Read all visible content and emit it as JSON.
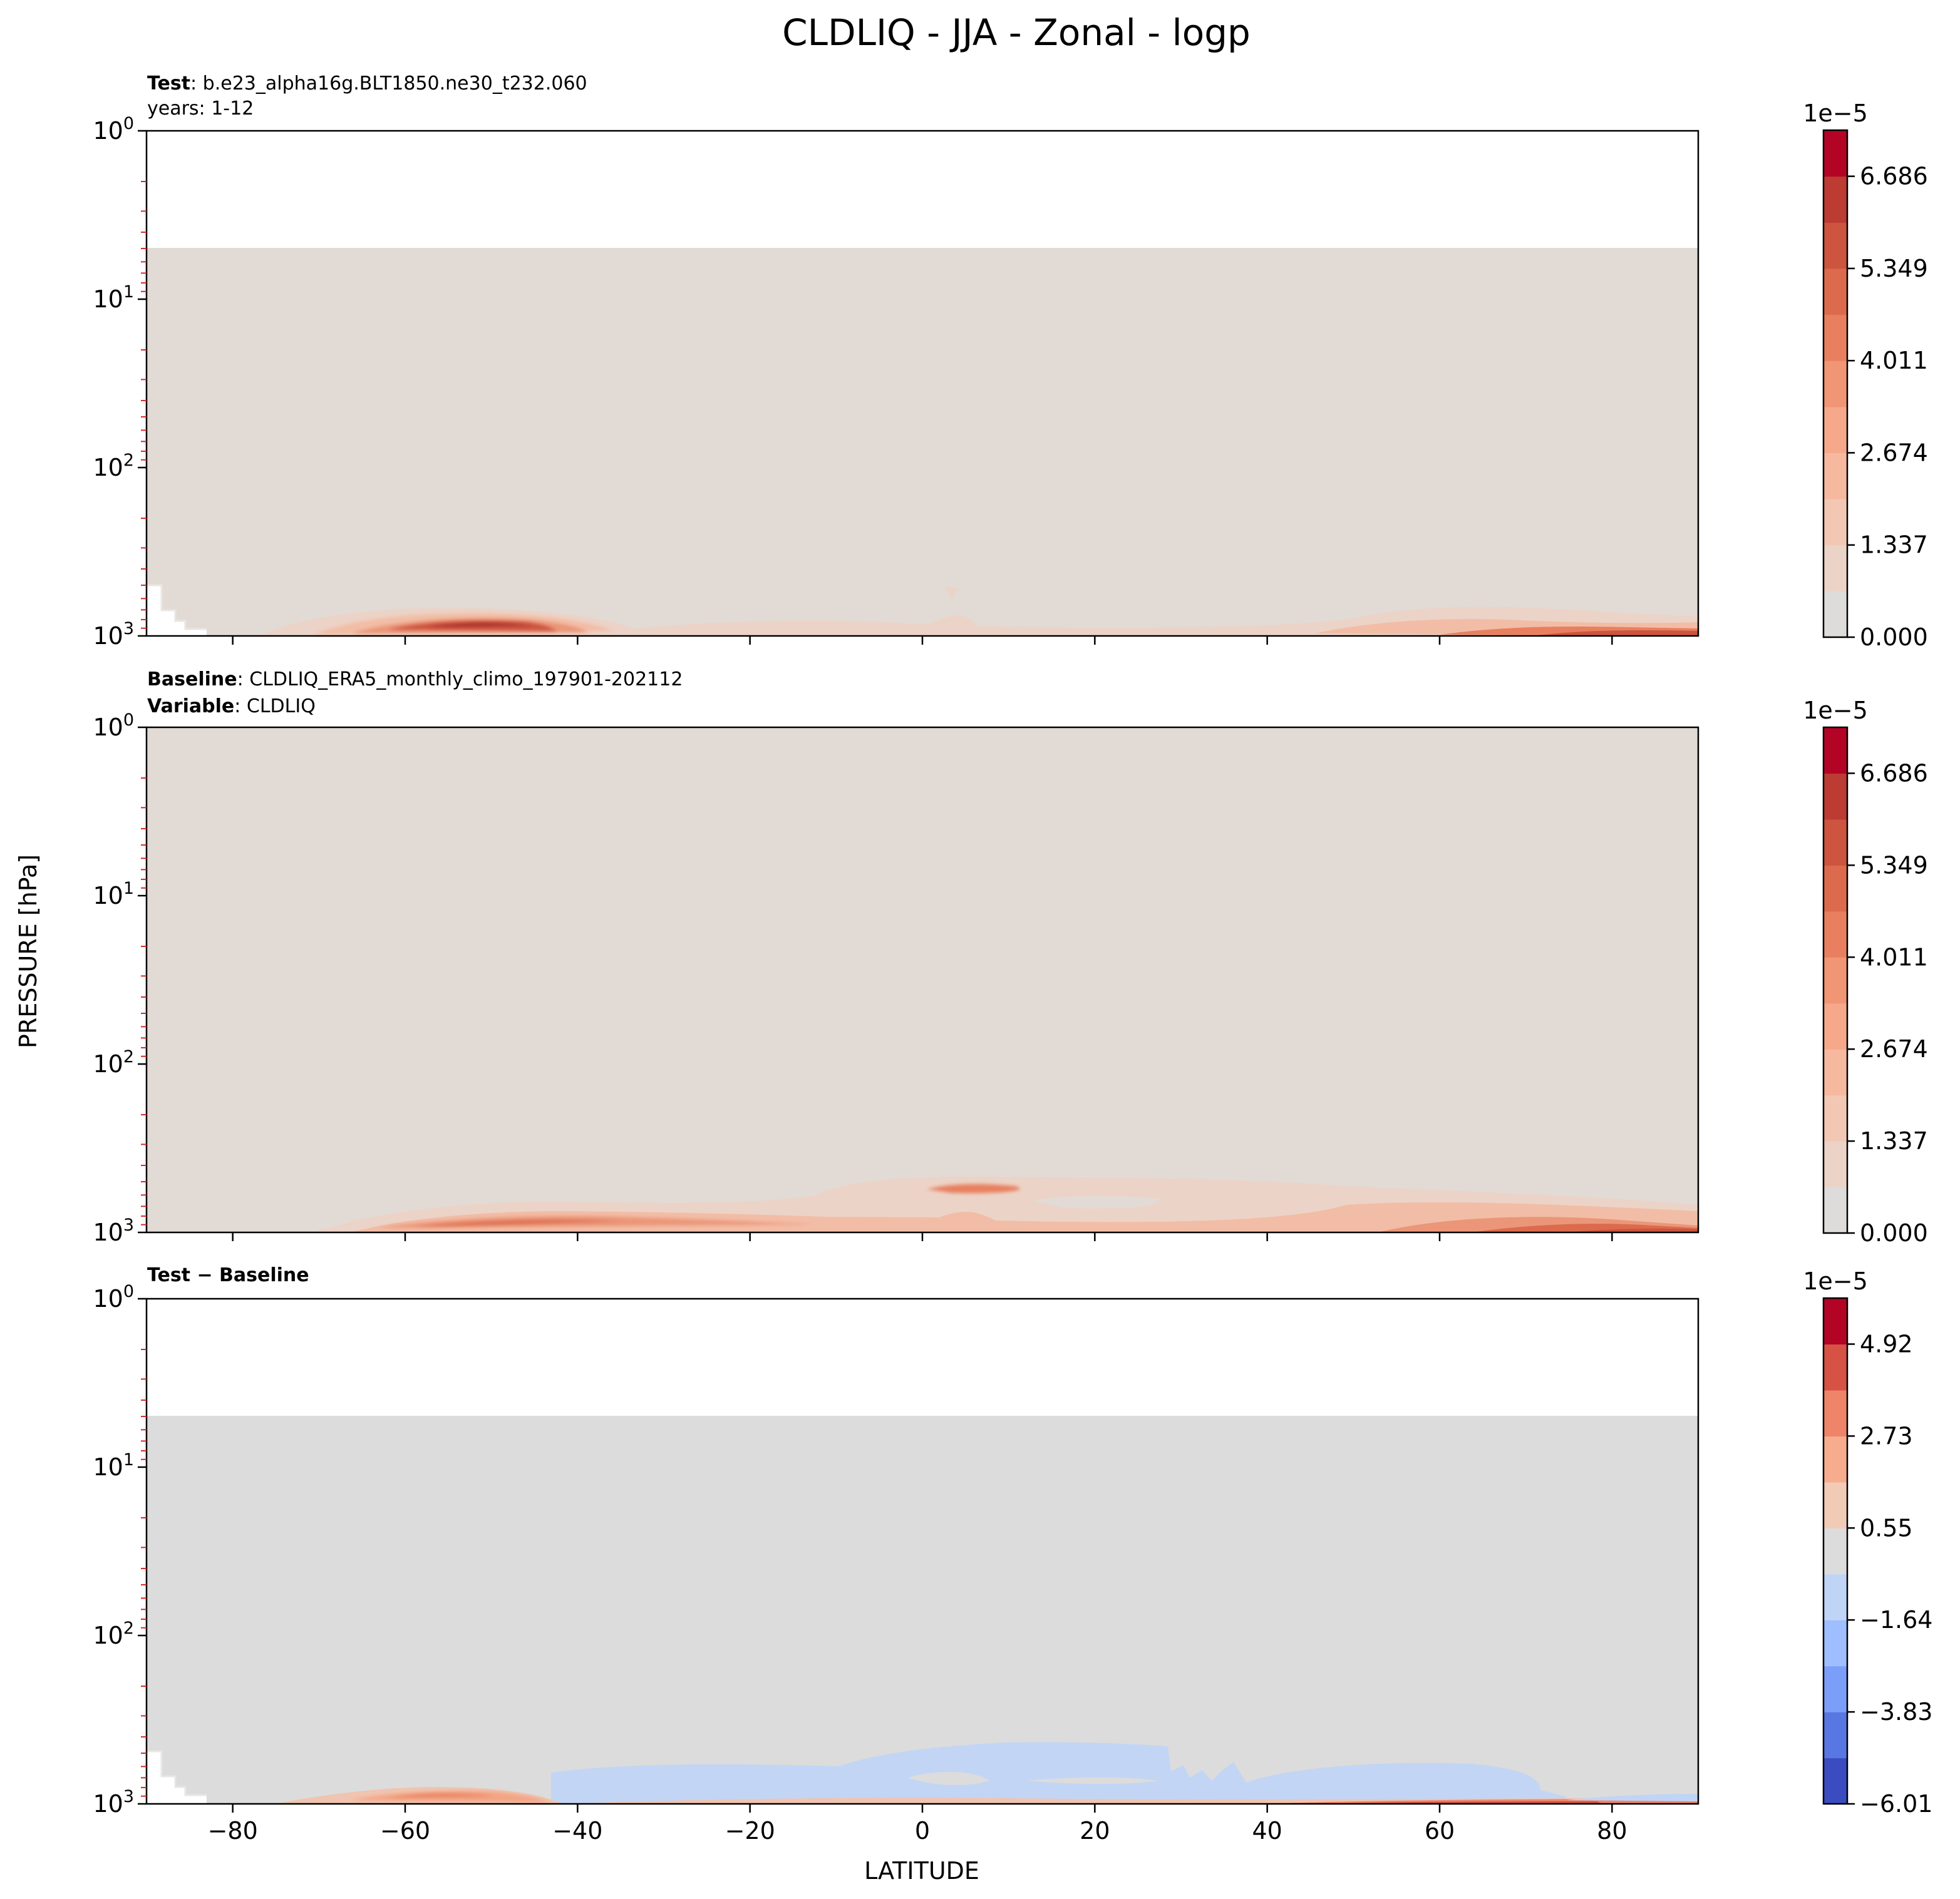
{
  "figure": {
    "title": "CLDLIQ - JJA - Zonal - logp",
    "ylabel": "PRESSURE [hPa]",
    "xlabel": "LATITUDE"
  },
  "panels": [
    {
      "id": "test",
      "line1_bold": "Test",
      "line1_text": ": b.e23_alpha16g.BLT1850.ne30_t232.060",
      "line2_bold": "",
      "line2_text": "years: 1-12",
      "colorbar_exponent": "1e−5",
      "colorbar_ticks": [
        "0.000",
        "1.337",
        "2.674",
        "4.011",
        "5.349",
        "6.686"
      ],
      "colorbar_colors": [
        "#dddcdb",
        "#ecd3c7",
        "#f2c8b5",
        "#f6b9a0",
        "#f5a98a",
        "#f19675",
        "#e8805f",
        "#dc6b4d",
        "#cd543e",
        "#bc3b32",
        "#b40426"
      ]
    },
    {
      "id": "baseline",
      "line1_bold": "Baseline",
      "line1_text": ": CLDLIQ_ERA5_monthly_climo_197901-202112",
      "line2_bold": "Variable",
      "line2_text": ": CLDLIQ",
      "colorbar_exponent": "1e−5",
      "colorbar_ticks": [
        "0.000",
        "1.337",
        "2.674",
        "4.011",
        "5.349",
        "6.686"
      ],
      "colorbar_colors": [
        "#dddcdb",
        "#ecd3c7",
        "#f2c8b5",
        "#f6b9a0",
        "#f5a98a",
        "#f19675",
        "#e8805f",
        "#dc6b4d",
        "#cd543e",
        "#bc3b32",
        "#b40426"
      ]
    },
    {
      "id": "diff",
      "line1_bold": "Test − Baseline",
      "line1_text": "",
      "line2_bold": "",
      "line2_text": "",
      "colorbar_exponent": "1e−5",
      "colorbar_ticks": [
        "−6.01",
        "−3.83",
        "−1.64",
        "0.55",
        "2.73",
        "4.92"
      ],
      "colorbar_colors": [
        "#3b4cc0",
        "#5977e3",
        "#7b9ff9",
        "#9ebeff",
        "#c0d4f5",
        "#dddcdc",
        "#f2cbb7",
        "#f7ac8e",
        "#ee8468",
        "#d65244",
        "#b40426"
      ]
    }
  ],
  "chart_data": {
    "type": "heatmap",
    "x_ticks": [
      -80,
      -60,
      -40,
      -20,
      0,
      20,
      40,
      60,
      80
    ],
    "y_ticks": [
      "10^0",
      "10^1",
      "10^2",
      "10^3"
    ],
    "xlim": [
      -90,
      90
    ],
    "ylim_hPa": [
      1000,
      1
    ],
    "y_scale": "log",
    "note_values": "fields mostly near zero above ~800 hPa; maxima near surface around -60..-40 and 70..90 latitude"
  }
}
